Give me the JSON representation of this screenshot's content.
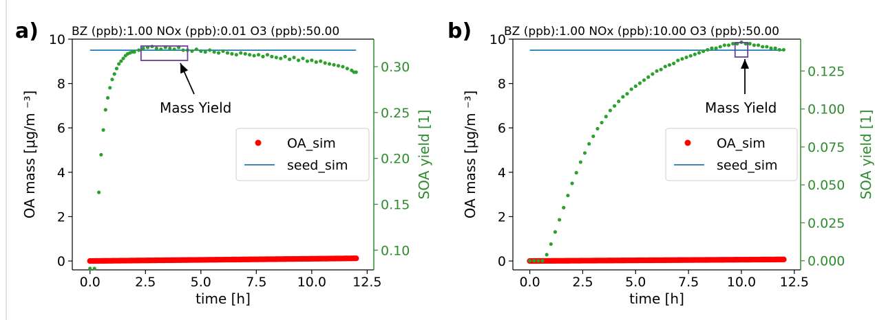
{
  "chart_data": [
    {
      "panel_label": "a)",
      "type": "scatter",
      "title": "BZ (ppb):1.00   NOx (ppb):0.01 O3 (ppb):50.00",
      "xlabel": "time [h]",
      "ylabel": "OA mass [μg/m ⁻³]",
      "y2label": "SOA yield [1]",
      "xlim": [
        -0.8,
        12.8
      ],
      "ylim": [
        -0.4,
        10
      ],
      "y2lim": [
        0.0785,
        0.33
      ],
      "x_ticks": [
        "0.0",
        "2.5",
        "5.0",
        "7.5",
        "10.0",
        "12.5"
      ],
      "y_ticks": [
        "0",
        "2",
        "4",
        "6",
        "8",
        "10"
      ],
      "y2_ticks": [
        "0.10",
        "0.15",
        "0.20",
        "0.25",
        "0.30"
      ],
      "legend": [
        "OA_sim",
        "seed_sim"
      ],
      "legend_position": "right",
      "annotation": "Mass Yield",
      "annotation_box_x": [
        2.3,
        4.4
      ],
      "series": [
        {
          "name": "OA_sim",
          "color": "#ff0000",
          "x_range": [
            0,
            12
          ],
          "y_range": [
            0.0,
            0.12
          ]
        },
        {
          "name": "seed_sim",
          "color": "#1f77b4",
          "x": [
            0,
            12
          ],
          "y": [
            9.5,
            9.5
          ]
        },
        {
          "color": "#2ca02c",
          "axis": "right",
          "x": [
            0,
            0.2,
            0.4,
            0.5,
            0.6,
            0.7,
            0.8,
            0.9,
            1.0,
            1.1,
            1.2,
            1.3,
            1.4,
            1.5,
            1.6,
            1.7,
            1.8,
            1.9,
            2.0,
            2.2,
            2.4,
            2.6,
            2.8,
            3.0,
            3.2,
            3.4,
            3.6,
            3.8,
            4.0,
            4.2,
            4.4,
            4.6,
            4.8,
            5.0,
            5.2,
            5.4,
            5.6,
            5.8,
            6.0,
            6.2,
            6.4,
            6.6,
            6.8,
            7.0,
            7.2,
            7.4,
            7.6,
            7.8,
            8.0,
            8.2,
            8.4,
            8.6,
            8.8,
            9.0,
            9.2,
            9.4,
            9.6,
            9.8,
            10.0,
            10.2,
            10.4,
            10.6,
            10.8,
            11.0,
            11.2,
            11.4,
            11.6,
            11.8,
            11.9,
            12.0
          ],
          "y": [
            0.08,
            0.08,
            0.163,
            0.204,
            0.231,
            0.253,
            0.266,
            0.277,
            0.286,
            0.292,
            0.298,
            0.303,
            0.306,
            0.309,
            0.312,
            0.314,
            0.315,
            0.316,
            0.316,
            0.318,
            0.32,
            0.321,
            0.322,
            0.32,
            0.319,
            0.321,
            0.32,
            0.319,
            0.321,
            0.318,
            0.318,
            0.317,
            0.319,
            0.317,
            0.316,
            0.318,
            0.316,
            0.315,
            0.317,
            0.315,
            0.314,
            0.313,
            0.315,
            0.314,
            0.313,
            0.312,
            0.313,
            0.311,
            0.313,
            0.311,
            0.31,
            0.309,
            0.311,
            0.308,
            0.31,
            0.307,
            0.309,
            0.306,
            0.307,
            0.305,
            0.306,
            0.304,
            0.303,
            0.302,
            0.301,
            0.3,
            0.298,
            0.296,
            0.294,
            0.294
          ]
        }
      ]
    },
    {
      "panel_label": "b)",
      "type": "scatter",
      "title": "BZ (ppb):1.00   NOx (ppb):10.00 O3 (ppb):50.00",
      "xlabel": "time [h]",
      "ylabel": "OA mass [μg/m ⁻³]",
      "y2label": "SOA yield [1]",
      "xlim": [
        -0.8,
        12.8
      ],
      "ylim": [
        -0.4,
        10
      ],
      "y2lim": [
        -0.006,
        0.146
      ],
      "x_ticks": [
        "0.0",
        "2.5",
        "5.0",
        "7.5",
        "10.0",
        "12.5"
      ],
      "y_ticks": [
        "0",
        "2",
        "4",
        "6",
        "8",
        "10"
      ],
      "y2_ticks": [
        "0.000",
        "0.025",
        "0.050",
        "0.075",
        "0.100",
        "0.125"
      ],
      "legend": [
        "OA_sim",
        "seed_sim"
      ],
      "legend_position": "right",
      "annotation": "Mass Yield",
      "annotation_box_x": [
        9.7,
        10.3
      ],
      "series": [
        {
          "name": "OA_sim",
          "color": "#ff0000",
          "x_range": [
            0,
            12
          ],
          "y_range": [
            0.0,
            0.07
          ]
        },
        {
          "name": "seed_sim",
          "color": "#1f77b4",
          "x": [
            0,
            12
          ],
          "y": [
            9.5,
            9.5
          ]
        },
        {
          "color": "#2ca02c",
          "axis": "right",
          "x": [
            0,
            0.2,
            0.4,
            0.6,
            0.8,
            1.0,
            1.2,
            1.4,
            1.6,
            1.8,
            2.0,
            2.2,
            2.4,
            2.6,
            2.8,
            3.0,
            3.2,
            3.4,
            3.6,
            3.8,
            4.0,
            4.2,
            4.4,
            4.6,
            4.8,
            5.0,
            5.2,
            5.4,
            5.6,
            5.8,
            6.0,
            6.2,
            6.4,
            6.6,
            6.8,
            7.0,
            7.2,
            7.4,
            7.6,
            7.8,
            8.0,
            8.2,
            8.4,
            8.6,
            8.8,
            9.0,
            9.2,
            9.4,
            9.6,
            9.8,
            10.0,
            10.2,
            10.4,
            10.6,
            10.8,
            11.0,
            11.2,
            11.4,
            11.6,
            11.8,
            12.0
          ],
          "y": [
            0.0,
            0.0,
            0.0,
            0.0,
            0.004,
            0.011,
            0.019,
            0.027,
            0.035,
            0.043,
            0.051,
            0.058,
            0.065,
            0.071,
            0.077,
            0.082,
            0.087,
            0.091,
            0.095,
            0.099,
            0.102,
            0.105,
            0.108,
            0.11,
            0.113,
            0.115,
            0.117,
            0.119,
            0.121,
            0.123,
            0.125,
            0.126,
            0.128,
            0.129,
            0.13,
            0.132,
            0.133,
            0.134,
            0.135,
            0.136,
            0.137,
            0.138,
            0.139,
            0.14,
            0.14,
            0.141,
            0.142,
            0.142,
            0.143,
            0.143,
            0.144,
            0.143,
            0.143,
            0.142,
            0.142,
            0.141,
            0.141,
            0.14,
            0.14,
            0.139,
            0.139
          ]
        }
      ]
    }
  ]
}
